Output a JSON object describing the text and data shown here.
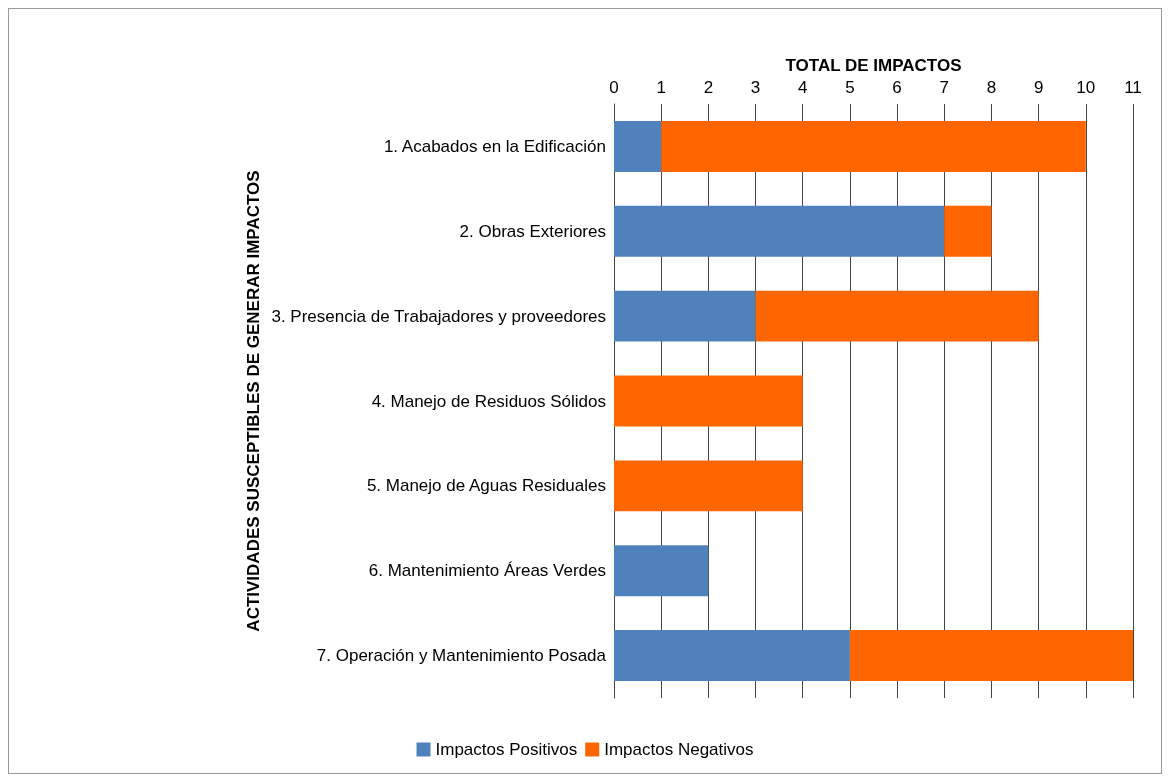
{
  "chart_data": {
    "type": "bar",
    "orientation": "horizontal",
    "stacked": true,
    "xlabel": "TOTAL DE IMPACTOS",
    "ylabel": "ACTIVIDADES SUSCEPTIBLES DE GENERAR IMPACTOS",
    "categories": [
      "1. Acabados en la Edificación",
      "2. Obras Exteriores",
      "3. Presencia de Trabajadores y proveedores",
      "4. Manejo de Residuos Sólidos",
      "5. Manejo de Aguas Residuales",
      "6. Mantenimiento Áreas Verdes",
      "7. Operación y Mantenimiento Posada"
    ],
    "series": [
      {
        "name": "Impactos Positivos",
        "color": "#4f81bd",
        "values": [
          1,
          7,
          3,
          0,
          0,
          2,
          5
        ]
      },
      {
        "name": "Impactos Negativos",
        "color": "#ff6600",
        "values": [
          9,
          1,
          6,
          4,
          4,
          0,
          6
        ]
      }
    ],
    "xlim": [
      0,
      11
    ],
    "xticks": [
      0,
      1,
      2,
      3,
      4,
      5,
      6,
      7,
      8,
      9,
      10,
      11
    ],
    "grid": "x",
    "legend": "bottom"
  }
}
